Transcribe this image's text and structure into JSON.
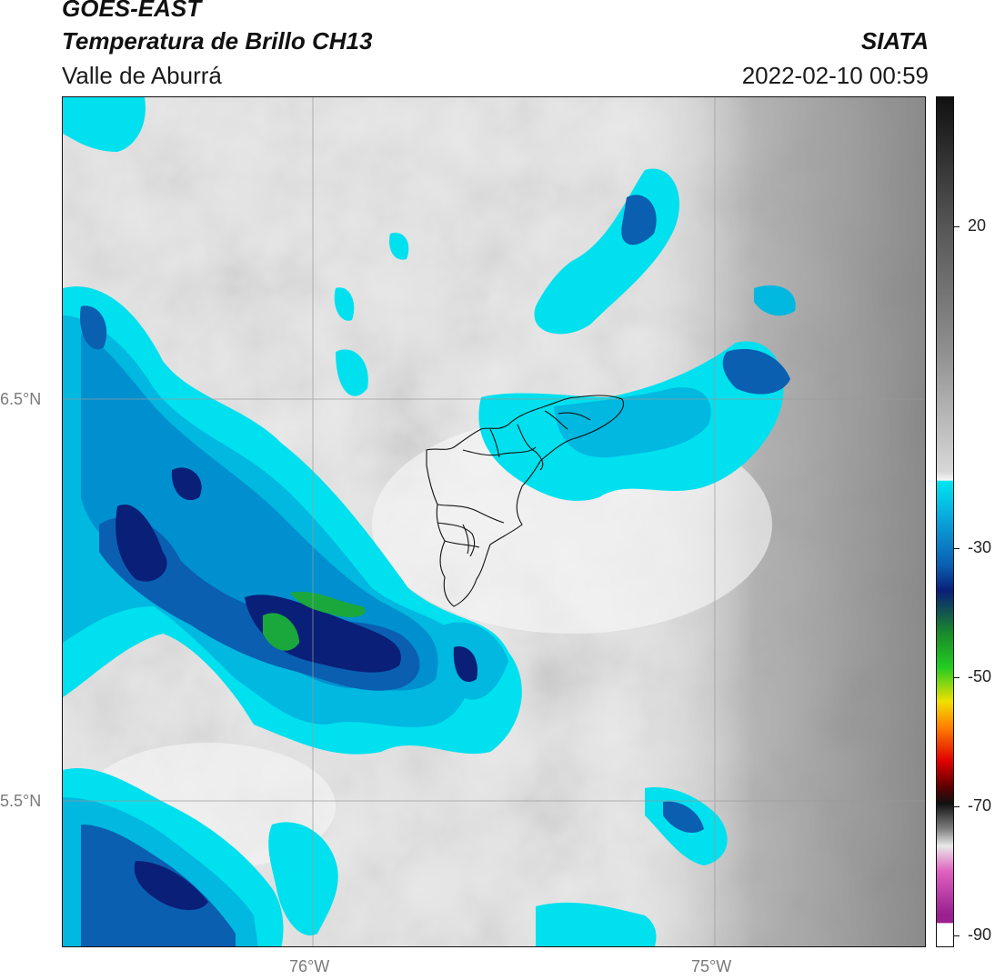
{
  "header": {
    "satellite": "GOES-EAST",
    "product": "Temperatura de Brillo CH13",
    "region": "Valle de Aburrá",
    "agency": "SIATA",
    "datetime": "2022-02-10 00:59"
  },
  "map": {
    "lat_labels": [
      "6.5°N",
      "5.5°N"
    ],
    "lon_labels": [
      "76°W",
      "75°W"
    ]
  },
  "colorbar": {
    "ticks": [
      "20",
      "-30",
      "-50",
      "-70",
      "-90"
    ],
    "colors": {
      "warm_dark": "#2a2a2a",
      "warm_mid": "#8a8a8a",
      "warm_light": "#f2f2f2",
      "cyan": "#00e5f0",
      "blue": "#0a5fb0",
      "navy": "#0a1f78",
      "green": "#22cc22",
      "yellow": "#f0e000",
      "red": "#e00000",
      "magenta": "#c040c0"
    }
  }
}
